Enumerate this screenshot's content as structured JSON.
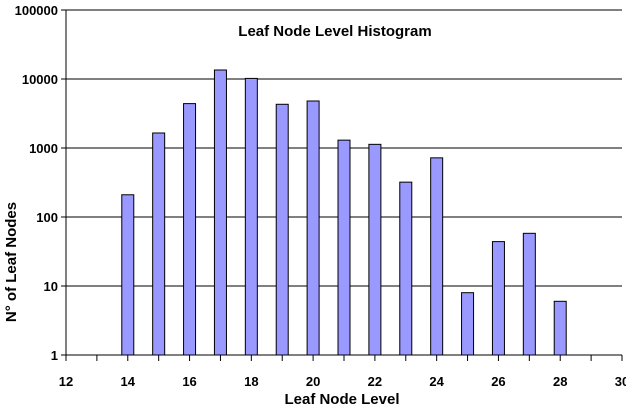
{
  "chart_data": {
    "type": "bar",
    "title": "Leaf Node Level Histogram",
    "xlabel": "Leaf Node Level",
    "ylabel": "N° of Leaf Nodes",
    "yscale": "log",
    "ylim": [
      1,
      100000
    ],
    "xlim": [
      12,
      30
    ],
    "x_ticks": [
      12,
      14,
      16,
      18,
      20,
      22,
      24,
      26,
      28,
      30
    ],
    "y_ticks": [
      1,
      10,
      100,
      1000,
      10000,
      100000
    ],
    "grid": "horizontal",
    "bar_color": "#9999ff",
    "x": [
      14,
      15,
      16,
      17,
      18,
      19,
      20,
      21,
      22,
      23,
      24,
      25,
      26,
      27,
      28
    ],
    "values": [
      210,
      1650,
      4400,
      13500,
      10200,
      4300,
      4800,
      1300,
      1130,
      320,
      720,
      8,
      44,
      58,
      6
    ]
  }
}
